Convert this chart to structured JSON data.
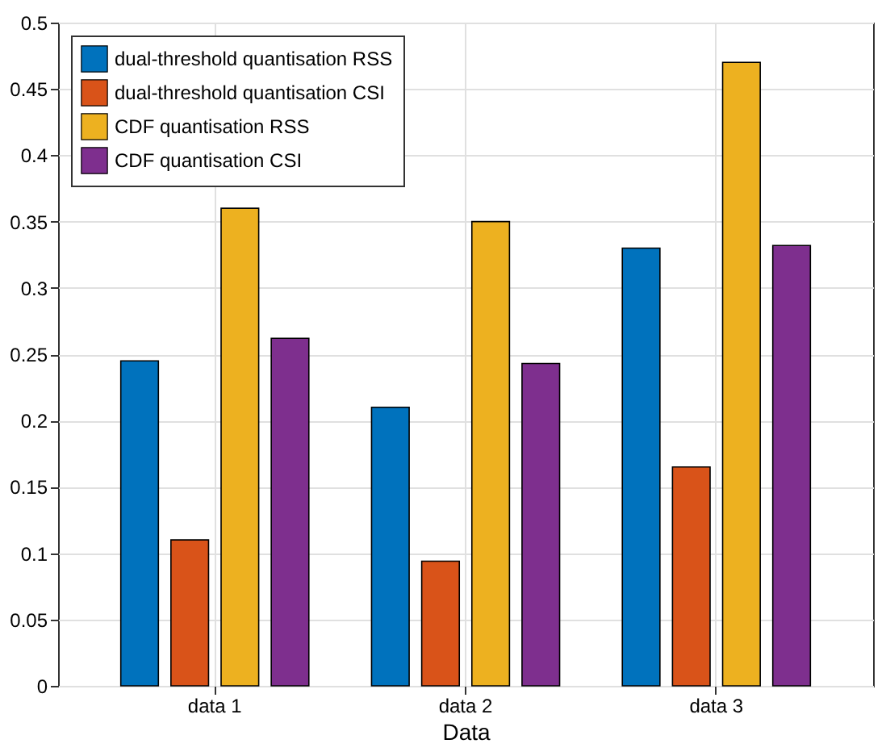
{
  "chart_data": {
    "type": "bar",
    "xlabel": "Data",
    "categories": [
      "data 1",
      "data 2",
      "data 3"
    ],
    "series": [
      {
        "name": "dual-threshold quantisation RSS",
        "color": "#0072bd",
        "values": [
          0.245,
          0.21,
          0.33
        ]
      },
      {
        "name": "dual-threshold quantisation CSI",
        "color": "#d95319",
        "values": [
          0.11,
          0.094,
          0.165
        ]
      },
      {
        "name": "CDF quantisation RSS",
        "color": "#edb120",
        "values": [
          0.36,
          0.35,
          0.47
        ]
      },
      {
        "name": "CDF quantisation CSI",
        "color": "#7e2f8e",
        "values": [
          0.262,
          0.243,
          0.332
        ]
      }
    ],
    "ylim": [
      0,
      0.5
    ],
    "yticks": [
      0,
      0.05,
      0.1,
      0.15,
      0.2,
      0.25,
      0.3,
      0.35,
      0.4,
      0.45,
      0.5
    ],
    "grid": true,
    "legend": "top left"
  }
}
